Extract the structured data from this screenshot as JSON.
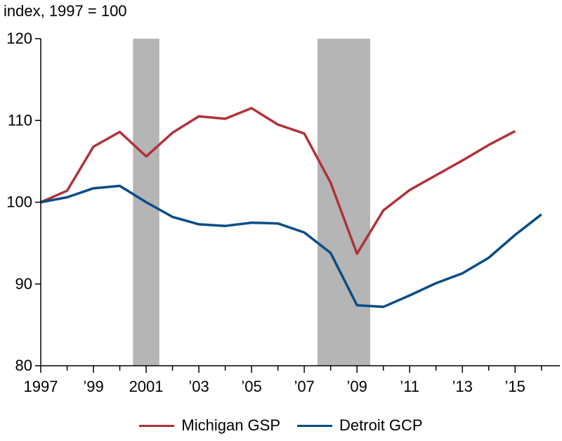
{
  "chart_data": {
    "type": "line",
    "unit_label": "index, 1997 = 100",
    "title": "",
    "xlabel": "",
    "ylabel": "",
    "xlim": [
      1997,
      2016.7
    ],
    "ylim": [
      80,
      120
    ],
    "y_ticks": [
      80,
      90,
      100,
      110,
      120
    ],
    "x_ticks": [
      {
        "x": 1997,
        "label": "1997"
      },
      {
        "x": 1999,
        "label": "’99"
      },
      {
        "x": 2001,
        "label": "2001"
      },
      {
        "x": 2003,
        "label": "’03"
      },
      {
        "x": 2005,
        "label": "’05"
      },
      {
        "x": 2007,
        "label": "’07"
      },
      {
        "x": 2009,
        "label": "’09"
      },
      {
        "x": 2011,
        "label": "’11"
      },
      {
        "x": 2013,
        "label": "’13"
      },
      {
        "x": 2015,
        "label": "’15"
      }
    ],
    "recessions": [
      {
        "start": 2000.5,
        "end": 2001.5
      },
      {
        "start": 2007.5,
        "end": 2009.5
      }
    ],
    "series": [
      {
        "name": "Michigan GSP",
        "color": "#b0323a",
        "points": [
          [
            1997,
            100.0
          ],
          [
            1998,
            101.4
          ],
          [
            1999,
            106.8
          ],
          [
            2000,
            108.6
          ],
          [
            2001,
            105.6
          ],
          [
            2002,
            108.5
          ],
          [
            2003,
            110.5
          ],
          [
            2004,
            110.2
          ],
          [
            2005,
            111.5
          ],
          [
            2006,
            109.5
          ],
          [
            2007,
            108.4
          ],
          [
            2008,
            102.4
          ],
          [
            2009,
            93.7
          ],
          [
            2010,
            99.0
          ],
          [
            2011,
            101.5
          ],
          [
            2012,
            103.3
          ],
          [
            2013,
            105.1
          ],
          [
            2014,
            107.0
          ],
          [
            2015,
            108.7
          ]
        ]
      },
      {
        "name": "Detroit GCP",
        "color": "#0a4c86",
        "points": [
          [
            1997,
            100.0
          ],
          [
            1998,
            100.6
          ],
          [
            1999,
            101.7
          ],
          [
            2000,
            102.0
          ],
          [
            2001,
            100.0
          ],
          [
            2002,
            98.2
          ],
          [
            2003,
            97.3
          ],
          [
            2004,
            97.1
          ],
          [
            2005,
            97.5
          ],
          [
            2006,
            97.4
          ],
          [
            2007,
            96.3
          ],
          [
            2008,
            93.8
          ],
          [
            2009,
            87.4
          ],
          [
            2010,
            87.2
          ],
          [
            2011,
            88.6
          ],
          [
            2012,
            90.1
          ],
          [
            2013,
            91.3
          ],
          [
            2014,
            93.2
          ],
          [
            2015,
            96.0
          ],
          [
            2016,
            98.5
          ]
        ]
      }
    ],
    "legend_position": "bottom-center"
  }
}
